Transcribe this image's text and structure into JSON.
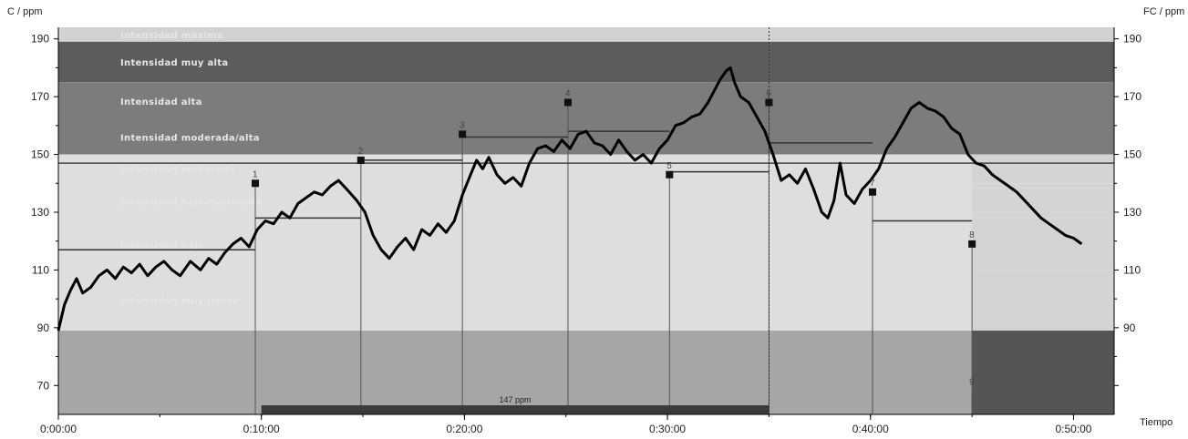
{
  "chart_data": {
    "type": "line",
    "left_axis_label": "C / ppm",
    "right_axis_label": "FC / ppm",
    "x_axis_label": "Tiempo",
    "y_ticks": [
      190,
      170,
      150,
      130,
      110,
      90,
      70
    ],
    "x_ticks": [
      "0:00:00",
      "0:10:00",
      "0:20:00",
      "0:30:00",
      "0:40:00",
      "0:50:00"
    ],
    "x_range_min": [
      0,
      52
    ],
    "y_range": [
      60,
      194
    ],
    "zones": [
      {
        "label": "Intensidad máxima",
        "low": 189,
        "high": 194,
        "color": "#d2d2d2"
      },
      {
        "label": "Intensidad muy alta",
        "low": 175,
        "high": 189,
        "color": "#5c5c5c"
      },
      {
        "label": "Intensidad alta",
        "low": 162,
        "high": 175,
        "color": "#7c7c7c"
      },
      {
        "label": "Intensidad moderada/alta",
        "low": 150,
        "high": 162,
        "color": "#7c7c7c"
      },
      {
        "label": "Intensidad moderada",
        "low": 140,
        "high": 150,
        "color": "#d4d4d4"
      },
      {
        "label": "Intensidad baja/moderada",
        "low": 128,
        "high": 140,
        "color": "#d4d4d4"
      },
      {
        "label": "Intensidad baja",
        "low": 110,
        "high": 128,
        "color": "#d4d4d4"
      },
      {
        "label": "Intensidad muy ligera",
        "low": 89,
        "high": 110,
        "color": "#d4d4d4"
      },
      {
        "label": "",
        "low": 60,
        "high": 89,
        "color": "#a6a6a6"
      }
    ],
    "laps": [
      {
        "label": "1",
        "t": 9.7,
        "hr": 140,
        "avg": 117
      },
      {
        "label": "2",
        "t": 14.9,
        "hr": 148,
        "avg": 128
      },
      {
        "label": "3",
        "t": 19.9,
        "hr": 157,
        "avg": 148
      },
      {
        "label": "4",
        "t": 25.1,
        "hr": 168,
        "avg": 156
      },
      {
        "label": "5",
        "t": 30.1,
        "hr": 143,
        "avg": 158
      },
      {
        "label": "6",
        "t": 35.0,
        "hr": 168,
        "avg": 144
      },
      {
        "label": "7",
        "t": 40.1,
        "hr": 137,
        "avg": 154
      },
      {
        "label": "8",
        "t": 45.0,
        "hr": 119,
        "avg": 127
      },
      {
        "label": "9",
        "t": 45.0,
        "hr": 68,
        "avg": null
      }
    ],
    "reference_line": {
      "value": 147,
      "label": "147 ppm",
      "bar_from": 10.0,
      "bar_to": 35.0
    },
    "series": [
      {
        "values": [
          [
            0.0,
            89
          ],
          [
            0.3,
            98
          ],
          [
            0.6,
            103
          ],
          [
            0.9,
            107
          ],
          [
            1.2,
            102
          ],
          [
            1.6,
            104
          ],
          [
            2.0,
            108
          ],
          [
            2.4,
            110
          ],
          [
            2.8,
            107
          ],
          [
            3.2,
            111
          ],
          [
            3.6,
            109
          ],
          [
            4.0,
            112
          ],
          [
            4.4,
            108
          ],
          [
            4.8,
            111
          ],
          [
            5.2,
            113
          ],
          [
            5.6,
            110
          ],
          [
            6.0,
            108
          ],
          [
            6.5,
            113
          ],
          [
            7.0,
            110
          ],
          [
            7.4,
            114
          ],
          [
            7.8,
            112
          ],
          [
            8.2,
            116
          ],
          [
            8.6,
            119
          ],
          [
            9.0,
            121
          ],
          [
            9.4,
            118
          ],
          [
            9.8,
            124
          ],
          [
            10.2,
            127
          ],
          [
            10.6,
            126
          ],
          [
            11.0,
            130
          ],
          [
            11.4,
            128
          ],
          [
            11.8,
            133
          ],
          [
            12.2,
            135
          ],
          [
            12.6,
            137
          ],
          [
            13.0,
            136
          ],
          [
            13.4,
            139
          ],
          [
            13.8,
            141
          ],
          [
            14.2,
            138
          ],
          [
            14.7,
            134
          ],
          [
            15.1,
            130
          ],
          [
            15.5,
            122
          ],
          [
            15.9,
            117
          ],
          [
            16.3,
            114
          ],
          [
            16.7,
            118
          ],
          [
            17.1,
            121
          ],
          [
            17.5,
            117
          ],
          [
            17.9,
            124
          ],
          [
            18.3,
            122
          ],
          [
            18.7,
            126
          ],
          [
            19.1,
            123
          ],
          [
            19.5,
            127
          ],
          [
            19.9,
            136
          ],
          [
            20.3,
            143
          ],
          [
            20.6,
            148
          ],
          [
            20.9,
            145
          ],
          [
            21.2,
            149
          ],
          [
            21.6,
            143
          ],
          [
            22.0,
            140
          ],
          [
            22.4,
            142
          ],
          [
            22.8,
            139
          ],
          [
            23.2,
            147
          ],
          [
            23.6,
            152
          ],
          [
            24.0,
            153
          ],
          [
            24.4,
            151
          ],
          [
            24.8,
            155
          ],
          [
            25.2,
            152
          ],
          [
            25.6,
            157
          ],
          [
            26.0,
            158
          ],
          [
            26.4,
            154
          ],
          [
            26.8,
            153
          ],
          [
            27.2,
            150
          ],
          [
            27.6,
            155
          ],
          [
            28.0,
            151
          ],
          [
            28.4,
            148
          ],
          [
            28.8,
            150
          ],
          [
            29.2,
            147
          ],
          [
            29.6,
            152
          ],
          [
            30.0,
            155
          ],
          [
            30.4,
            160
          ],
          [
            30.8,
            161
          ],
          [
            31.2,
            163
          ],
          [
            31.6,
            164
          ],
          [
            32.0,
            168
          ],
          [
            32.3,
            172
          ],
          [
            32.6,
            176
          ],
          [
            32.9,
            179
          ],
          [
            33.1,
            180
          ],
          [
            33.3,
            175
          ],
          [
            33.6,
            170
          ],
          [
            34.0,
            168
          ],
          [
            34.4,
            163
          ],
          [
            34.8,
            158
          ],
          [
            35.2,
            150
          ],
          [
            35.6,
            141
          ],
          [
            36.0,
            143
          ],
          [
            36.4,
            140
          ],
          [
            36.8,
            145
          ],
          [
            37.2,
            138
          ],
          [
            37.6,
            130
          ],
          [
            37.9,
            128
          ],
          [
            38.2,
            134
          ],
          [
            38.5,
            147
          ],
          [
            38.8,
            136
          ],
          [
            39.2,
            133
          ],
          [
            39.6,
            138
          ],
          [
            40.0,
            141
          ],
          [
            40.4,
            145
          ],
          [
            40.8,
            152
          ],
          [
            41.2,
            156
          ],
          [
            41.6,
            161
          ],
          [
            42.0,
            166
          ],
          [
            42.4,
            168
          ],
          [
            42.8,
            166
          ],
          [
            43.2,
            165
          ],
          [
            43.6,
            163
          ],
          [
            44.0,
            159
          ],
          [
            44.4,
            157
          ],
          [
            44.8,
            150
          ],
          [
            45.2,
            147
          ],
          [
            45.6,
            146
          ],
          [
            46.0,
            143
          ],
          [
            46.4,
            141
          ],
          [
            46.8,
            139
          ],
          [
            47.2,
            137
          ],
          [
            47.6,
            134
          ],
          [
            48.0,
            131
          ],
          [
            48.4,
            128
          ],
          [
            48.8,
            126
          ],
          [
            49.2,
            124
          ],
          [
            49.6,
            122
          ],
          [
            50.0,
            121
          ],
          [
            50.4,
            119
          ]
        ]
      }
    ]
  }
}
